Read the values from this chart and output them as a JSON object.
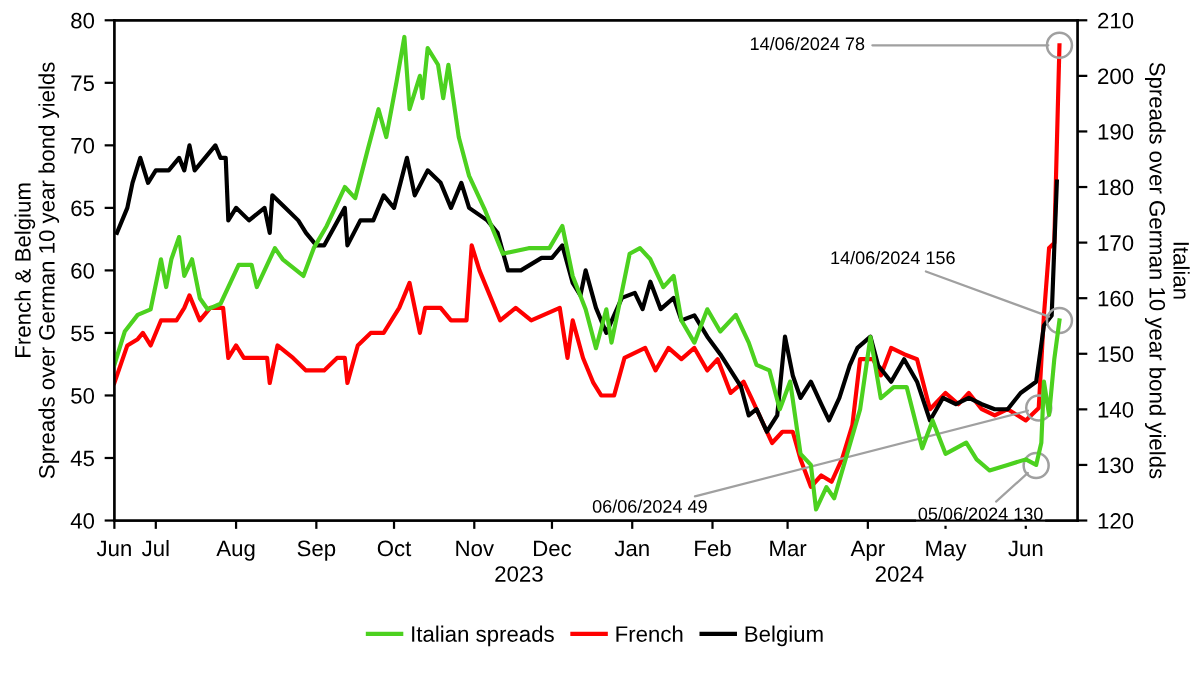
{
  "chart_data": {
    "type": "line",
    "ylabel": "French & Belgium\nSpreads over German 10 year bond yields",
    "y2label": "Italian\nSpreads over German 10 year bond yields",
    "xlim": [
      "2023-06-15",
      "2024-06-21"
    ],
    "xticks": [
      {
        "value": "2023-06-15",
        "label": "Jun"
      },
      {
        "value": "2023-07-01",
        "label": "Jul"
      },
      {
        "value": "2023-08-01",
        "label": "Aug"
      },
      {
        "value": "2023-09-01",
        "label": "Sep"
      },
      {
        "value": "2023-10-01",
        "label": "Oct"
      },
      {
        "value": "2023-11-01",
        "label": "Nov"
      },
      {
        "value": "2023-12-01",
        "label": "Dec"
      },
      {
        "value": "2024-01-01",
        "label": "Jan"
      },
      {
        "value": "2024-02-01",
        "label": "Feb"
      },
      {
        "value": "2024-03-01",
        "label": "Mar"
      },
      {
        "value": "2024-04-01",
        "label": "Apr"
      },
      {
        "value": "2024-05-01",
        "label": "May"
      },
      {
        "value": "2024-06-01",
        "label": "Jun"
      }
    ],
    "ylim": [
      40,
      80
    ],
    "yticks": [
      40,
      45,
      50,
      55,
      60,
      65,
      70,
      75,
      80
    ],
    "y2lim": [
      120,
      210
    ],
    "y2ticks": [
      120,
      130,
      140,
      150,
      160,
      170,
      180,
      190,
      200,
      210
    ],
    "grid": false,
    "legend": "bottom",
    "marker": "none",
    "line_style": "solid",
    "series": [
      {
        "name": "Italian spreads",
        "color": "#4cd11f",
        "axis": "y2",
        "x": [
          "2023-06-15",
          "2023-06-19",
          "2023-06-24",
          "2023-06-29",
          "2023-07-03",
          "2023-07-05",
          "2023-07-07",
          "2023-07-10",
          "2023-07-12",
          "2023-07-15",
          "2023-07-18",
          "2023-07-21",
          "2023-07-26",
          "2023-08-02",
          "2023-08-07",
          "2023-08-09",
          "2023-08-16",
          "2023-08-19",
          "2023-08-27",
          "2023-08-31",
          "2023-09-05",
          "2023-09-12",
          "2023-09-16",
          "2023-09-21",
          "2023-09-25",
          "2023-09-28",
          "2023-10-02",
          "2023-10-05",
          "2023-10-07",
          "2023-10-11",
          "2023-10-12",
          "2023-10-14",
          "2023-10-18",
          "2023-10-20",
          "2023-10-22",
          "2023-10-26",
          "2023-10-30",
          "2023-11-05",
          "2023-11-12",
          "2023-11-22",
          "2023-11-30",
          "2023-12-05",
          "2023-12-09",
          "2023-12-14",
          "2023-12-18",
          "2023-12-22",
          "2023-12-24",
          "2023-12-31",
          "2024-01-04",
          "2024-01-08",
          "2024-01-13",
          "2024-01-17",
          "2024-01-20",
          "2024-01-25",
          "2024-01-30",
          "2024-02-04",
          "2024-02-10",
          "2024-02-15",
          "2024-02-18",
          "2024-02-23",
          "2024-02-27",
          "2024-03-02",
          "2024-03-06",
          "2024-03-10",
          "2024-03-12",
          "2024-03-16",
          "2024-03-19",
          "2024-03-24",
          "2024-03-29",
          "2024-04-02",
          "2024-04-06",
          "2024-04-11",
          "2024-04-16",
          "2024-04-22",
          "2024-04-26",
          "2024-05-01",
          "2024-05-09",
          "2024-05-13",
          "2024-05-18",
          "2024-05-25",
          "2024-06-01",
          "2024-06-05",
          "2024-06-07",
          "2024-06-08",
          "2024-06-10",
          "2024-06-12",
          "2024-06-14"
        ],
        "values": [
          148,
          154,
          157,
          158,
          167,
          162,
          167,
          171,
          164,
          167,
          160,
          158,
          159,
          166,
          166,
          162,
          169,
          167,
          164,
          169,
          173,
          180,
          178,
          187,
          194,
          189,
          199,
          207,
          194,
          200,
          196,
          205,
          202,
          196,
          202,
          189,
          182,
          176,
          168,
          169,
          169,
          173,
          164,
          158,
          151,
          158,
          152,
          168,
          169,
          167,
          162,
          164,
          156,
          152,
          158,
          154,
          157,
          152,
          148,
          147,
          140,
          145,
          132,
          130,
          122,
          126,
          124,
          132,
          140,
          153,
          142,
          144,
          144,
          133,
          138,
          132,
          134,
          131,
          129,
          130,
          131,
          130,
          134,
          145,
          139,
          149,
          156
        ]
      },
      {
        "name": "French",
        "color": "#ff0000",
        "x": [
          "2023-06-15",
          "2023-06-20",
          "2023-06-24",
          "2023-06-26",
          "2023-06-29",
          "2023-07-03",
          "2023-07-09",
          "2023-07-12",
          "2023-07-14",
          "2023-07-18",
          "2023-07-22",
          "2023-07-27",
          "2023-07-29",
          "2023-08-01",
          "2023-08-04",
          "2023-08-13",
          "2023-08-14",
          "2023-08-17",
          "2023-08-23",
          "2023-08-28",
          "2023-09-04",
          "2023-09-09",
          "2023-09-12",
          "2023-09-13",
          "2023-09-17",
          "2023-09-22",
          "2023-09-27",
          "2023-10-03",
          "2023-10-07",
          "2023-10-11",
          "2023-10-13",
          "2023-10-19",
          "2023-10-23",
          "2023-10-29",
          "2023-10-31",
          "2023-11-03",
          "2023-11-11",
          "2023-11-17",
          "2023-11-23",
          "2023-12-04",
          "2023-12-07",
          "2023-12-09",
          "2023-12-13",
          "2023-12-17",
          "2023-12-20",
          "2023-12-25",
          "2023-12-29",
          "2024-01-06",
          "2024-01-10",
          "2024-01-15",
          "2024-01-20",
          "2024-01-25",
          "2024-01-30",
          "2024-02-03",
          "2024-02-08",
          "2024-02-13",
          "2024-02-16",
          "2024-02-20",
          "2024-02-24",
          "2024-02-28",
          "2024-03-03",
          "2024-03-06",
          "2024-03-10",
          "2024-03-14",
          "2024-03-18",
          "2024-03-22",
          "2024-03-26",
          "2024-03-29",
          "2024-04-03",
          "2024-04-06",
          "2024-04-10",
          "2024-04-15",
          "2024-04-20",
          "2024-04-25",
          "2024-05-01",
          "2024-05-06",
          "2024-05-10",
          "2024-05-15",
          "2024-05-20",
          "2024-05-25",
          "2024-06-01",
          "2024-06-06",
          "2024-06-08",
          "2024-06-10",
          "2024-06-12",
          "2024-06-14"
        ],
        "values": [
          51,
          54,
          54.5,
          55,
          54,
          56,
          56,
          57,
          58,
          56,
          57,
          57,
          53,
          54,
          53,
          53,
          51,
          54,
          53,
          52,
          52,
          53,
          53,
          51,
          54,
          55,
          55,
          57,
          59,
          55,
          57,
          57,
          56,
          56,
          62,
          60,
          56,
          57,
          56,
          57,
          53,
          56,
          53,
          51,
          50,
          50,
          53,
          53.8,
          52,
          53.8,
          52.9,
          53.8,
          52,
          52.9,
          50.2,
          51.1,
          49.8,
          48,
          46.2,
          47.1,
          47.1,
          44.9,
          42.7,
          43.6,
          43.1,
          44.9,
          47.6,
          52.9,
          52.9,
          51.6,
          53.8,
          53.3,
          52.9,
          48.9,
          50.2,
          49.3,
          50.2,
          48.9,
          48.4,
          48.9,
          48,
          49,
          56.4,
          61.8,
          62.2,
          78
        ]
      },
      {
        "name": "Belgium",
        "color": "#000000",
        "x": [
          "2023-06-16",
          "2023-06-20",
          "2023-06-22",
          "2023-06-25",
          "2023-06-28",
          "2023-07-01",
          "2023-07-06",
          "2023-07-10",
          "2023-07-12",
          "2023-07-14",
          "2023-07-16",
          "2023-07-20",
          "2023-07-24",
          "2023-07-26",
          "2023-07-28",
          "2023-07-29",
          "2023-08-01",
          "2023-08-06",
          "2023-08-12",
          "2023-08-14",
          "2023-08-15",
          "2023-08-20",
          "2023-08-25",
          "2023-08-28",
          "2023-09-01",
          "2023-09-04",
          "2023-09-12",
          "2023-09-13",
          "2023-09-18",
          "2023-09-23",
          "2023-09-27",
          "2023-10-01",
          "2023-10-06",
          "2023-10-09",
          "2023-10-14",
          "2023-10-19",
          "2023-10-23",
          "2023-10-27",
          "2023-10-30",
          "2023-11-06",
          "2023-11-10",
          "2023-11-14",
          "2023-11-19",
          "2023-11-27",
          "2023-12-01",
          "2023-12-05",
          "2023-12-09",
          "2023-12-12",
          "2023-12-14",
          "2023-12-18",
          "2023-12-22",
          "2023-12-28",
          "2024-01-02",
          "2024-01-05",
          "2024-01-08",
          "2024-01-12",
          "2024-01-17",
          "2024-01-20",
          "2024-01-25",
          "2024-01-30",
          "2024-02-04",
          "2024-02-08",
          "2024-02-12",
          "2024-02-15",
          "2024-02-18",
          "2024-02-22",
          "2024-02-26",
          "2024-02-29",
          "2024-03-03",
          "2024-03-06",
          "2024-03-10",
          "2024-03-14",
          "2024-03-17",
          "2024-03-21",
          "2024-03-25",
          "2024-03-28",
          "2024-04-02",
          "2024-04-05",
          "2024-04-10",
          "2024-04-15",
          "2024-04-20",
          "2024-04-25",
          "2024-04-30",
          "2024-05-05",
          "2024-05-10",
          "2024-05-15",
          "2024-05-20",
          "2024-05-25",
          "2024-05-30",
          "2024-06-05",
          "2024-06-08",
          "2024-06-11",
          "2024-06-13"
        ],
        "values": [
          63,
          65,
          67,
          69,
          67,
          68,
          68,
          69,
          68,
          70,
          68,
          69,
          70,
          69,
          69,
          64,
          65,
          64,
          65,
          63,
          66,
          65,
          64,
          63,
          62,
          62,
          65,
          62,
          64,
          64,
          66,
          65,
          69,
          66,
          68,
          67,
          65,
          67,
          65,
          64,
          63,
          60,
          60,
          61,
          61,
          62,
          59,
          58,
          60,
          57,
          55,
          57.8,
          58.2,
          56.9,
          59.1,
          56.9,
          57.8,
          56,
          56.4,
          54.7,
          53.3,
          52,
          50.7,
          48.4,
          48.9,
          47.1,
          48.4,
          54.7,
          51.6,
          49.8,
          51.1,
          49.3,
          48,
          49.8,
          52.4,
          53.8,
          54.7,
          52.4,
          51.1,
          52.9,
          51.1,
          48,
          49.8,
          49.3,
          49.8,
          49.3,
          48.9,
          48.9,
          50.2,
          51.1,
          55.6,
          56.4,
          67.1
        ]
      }
    ],
    "annotations": [
      {
        "text": "14/06/2024 78",
        "x": "2024-06-14",
        "y": 78
      },
      {
        "text": "14/06/2024 156",
        "x": "2024-06-14",
        "y": 56
      },
      {
        "text": "06/06/2024 49",
        "x": "2024-06-06",
        "y": 49
      },
      {
        "text": "05/06/2024 130",
        "x": "2024-06-05",
        "y": 44.4
      },
      "2023",
      "2024"
    ]
  }
}
